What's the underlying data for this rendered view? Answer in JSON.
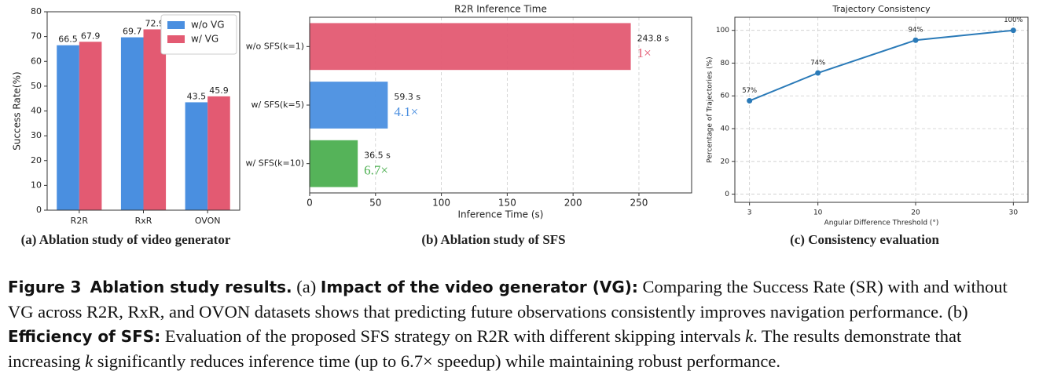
{
  "chart_data": [
    {
      "type": "bar",
      "caption": "(a) Ablation study of video generator",
      "ylabel": "Success Rate(%)",
      "categories": [
        "R2R",
        "RxR",
        "OVON"
      ],
      "series": [
        {
          "name": "w/o VG",
          "color": "#4a8fe0",
          "values": [
            66.5,
            69.7,
            43.5
          ]
        },
        {
          "name": "w/ VG",
          "color": "#e35a72",
          "values": [
            67.9,
            72.9,
            45.9
          ]
        }
      ],
      "ylim": [
        0,
        80
      ],
      "yticks": [
        0,
        10,
        20,
        30,
        40,
        50,
        60,
        70,
        80
      ],
      "grid": false,
      "legend": "upper-right"
    },
    {
      "type": "barh",
      "caption": "(b) Ablation study of SFS",
      "title": "R2R Inference Time",
      "xlabel": "Inference Time (s)",
      "categories": [
        "w/o SFS(k=1)",
        "w/ SFS(k=5)",
        "w/ SFS(k=10)"
      ],
      "values": [
        243.8,
        59.3,
        36.5
      ],
      "value_labels": [
        "243.8 s",
        "59.3 s",
        "36.5 s"
      ],
      "speedup_labels": [
        "1×",
        "4.1×",
        "6.7×"
      ],
      "colors": [
        "#e35a72",
        "#4a8fe0",
        "#4caf50"
      ],
      "xlim": [
        0,
        290
      ],
      "xticks": [
        0,
        50,
        100,
        150,
        200,
        250
      ],
      "grid": true
    },
    {
      "type": "line",
      "caption": "(c) Consistency evaluation",
      "title": "Trajectory Consistency",
      "xlabel": "Angular Difference Threshold (°)",
      "ylabel": "Percentage of Trajectories (%)",
      "x": [
        3,
        10,
        20,
        30
      ],
      "values": [
        57,
        74,
        94,
        100
      ],
      "value_labels": [
        "57%",
        "74%",
        "94%",
        "100%"
      ],
      "color": "#2a7ab8",
      "xlim": [
        1.5,
        31.5
      ],
      "xticks": [
        3,
        10,
        20,
        30
      ],
      "ylim": [
        -5,
        108
      ],
      "yticks": [
        0,
        20,
        40,
        60,
        80,
        100
      ],
      "grid": true
    }
  ],
  "caption": [
    "Figure 3",
    "Ablation study results.",
    "(a)",
    "Impact of the video generator (VG):",
    "Comparing the Success Rate (SR) with and without VG across R2R, RxR, and OVON datasets shows that predicting future observations consistently improves navigation performance. (b)",
    "Efficiency of SFS:",
    "Evaluation of the proposed SFS strategy on R2R with different skipping intervals",
    "k",
    ". The results demonstrate that increasing",
    "k",
    "significantly reduces inference time (up to 6.7× speedup) while maintaining robust performance."
  ]
}
